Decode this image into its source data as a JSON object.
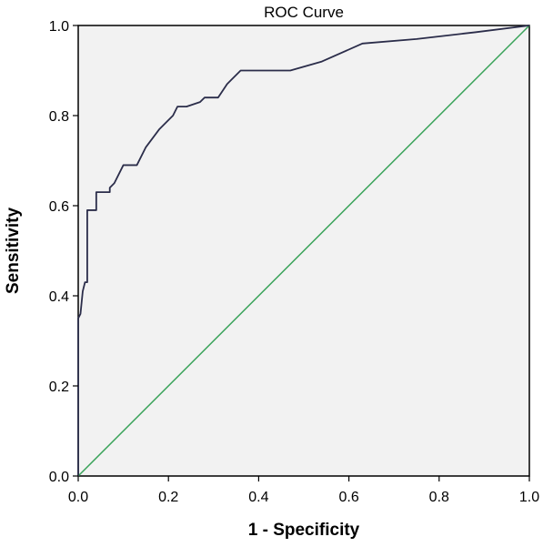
{
  "chart_data": {
    "type": "line",
    "title": "ROC Curve",
    "xlabel": "1 - Specificity",
    "ylabel": "Sensitivity",
    "xlim": [
      0,
      1
    ],
    "ylim": [
      0,
      1
    ],
    "xticks": [
      "0.0",
      "0.2",
      "0.4",
      "0.6",
      "0.8",
      "1.0"
    ],
    "yticks": [
      "0.0",
      "0.2",
      "0.4",
      "0.6",
      "0.8",
      "1.0"
    ],
    "grid": false,
    "legend": "none",
    "colors": {
      "plot_background": "#f2f2f2",
      "roc_line": "#2b2d4a",
      "reference_line": "#3aa35a"
    },
    "series": [
      {
        "x": [
          0.0,
          0.0,
          0.005,
          0.01,
          0.015,
          0.02,
          0.02,
          0.04,
          0.04,
          0.06,
          0.07,
          0.07,
          0.08,
          0.1,
          0.13,
          0.15,
          0.18,
          0.21,
          0.22,
          0.24,
          0.27,
          0.28,
          0.3,
          0.31,
          0.33,
          0.36,
          0.4,
          0.47,
          0.54,
          0.63,
          0.75,
          0.88,
          1.0
        ],
        "y": [
          0.0,
          0.35,
          0.36,
          0.41,
          0.43,
          0.43,
          0.59,
          0.59,
          0.63,
          0.63,
          0.63,
          0.64,
          0.65,
          0.69,
          0.69,
          0.73,
          0.77,
          0.8,
          0.82,
          0.82,
          0.83,
          0.84,
          0.84,
          0.84,
          0.87,
          0.9,
          0.9,
          0.9,
          0.92,
          0.96,
          0.97,
          0.985,
          1.0
        ]
      },
      {
        "x": [
          0,
          1
        ],
        "y": [
          0,
          1
        ]
      }
    ]
  }
}
